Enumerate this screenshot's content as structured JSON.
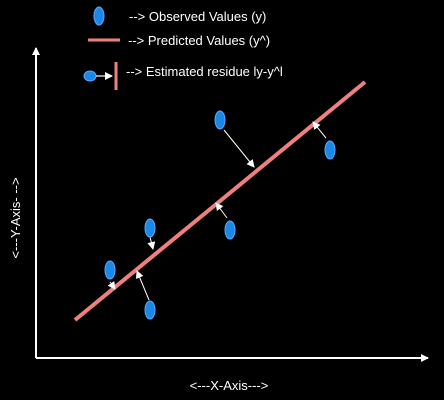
{
  "colors": {
    "background": "#000000",
    "axis": "#ffffff",
    "observed_fill": "#1a88e6",
    "observed_stroke": "#5fa8ff",
    "predicted_line": "#f08080",
    "residual_arrow": "#ffffff",
    "text": "#ffffff"
  },
  "legend": {
    "observed_label": "--> Observed Values (y)",
    "predicted_label": "--> Predicted Values (y^)",
    "residue_label": "--> Estimated residue ly-y^l"
  },
  "axes": {
    "x_label": "<---X-Axis--->",
    "y_label": "<---Y-Axis- -->"
  },
  "icons": {
    "observed": "blue-ellipse-icon",
    "predicted": "pink-line-icon",
    "residue": "arrow-to-line-icon"
  }
}
